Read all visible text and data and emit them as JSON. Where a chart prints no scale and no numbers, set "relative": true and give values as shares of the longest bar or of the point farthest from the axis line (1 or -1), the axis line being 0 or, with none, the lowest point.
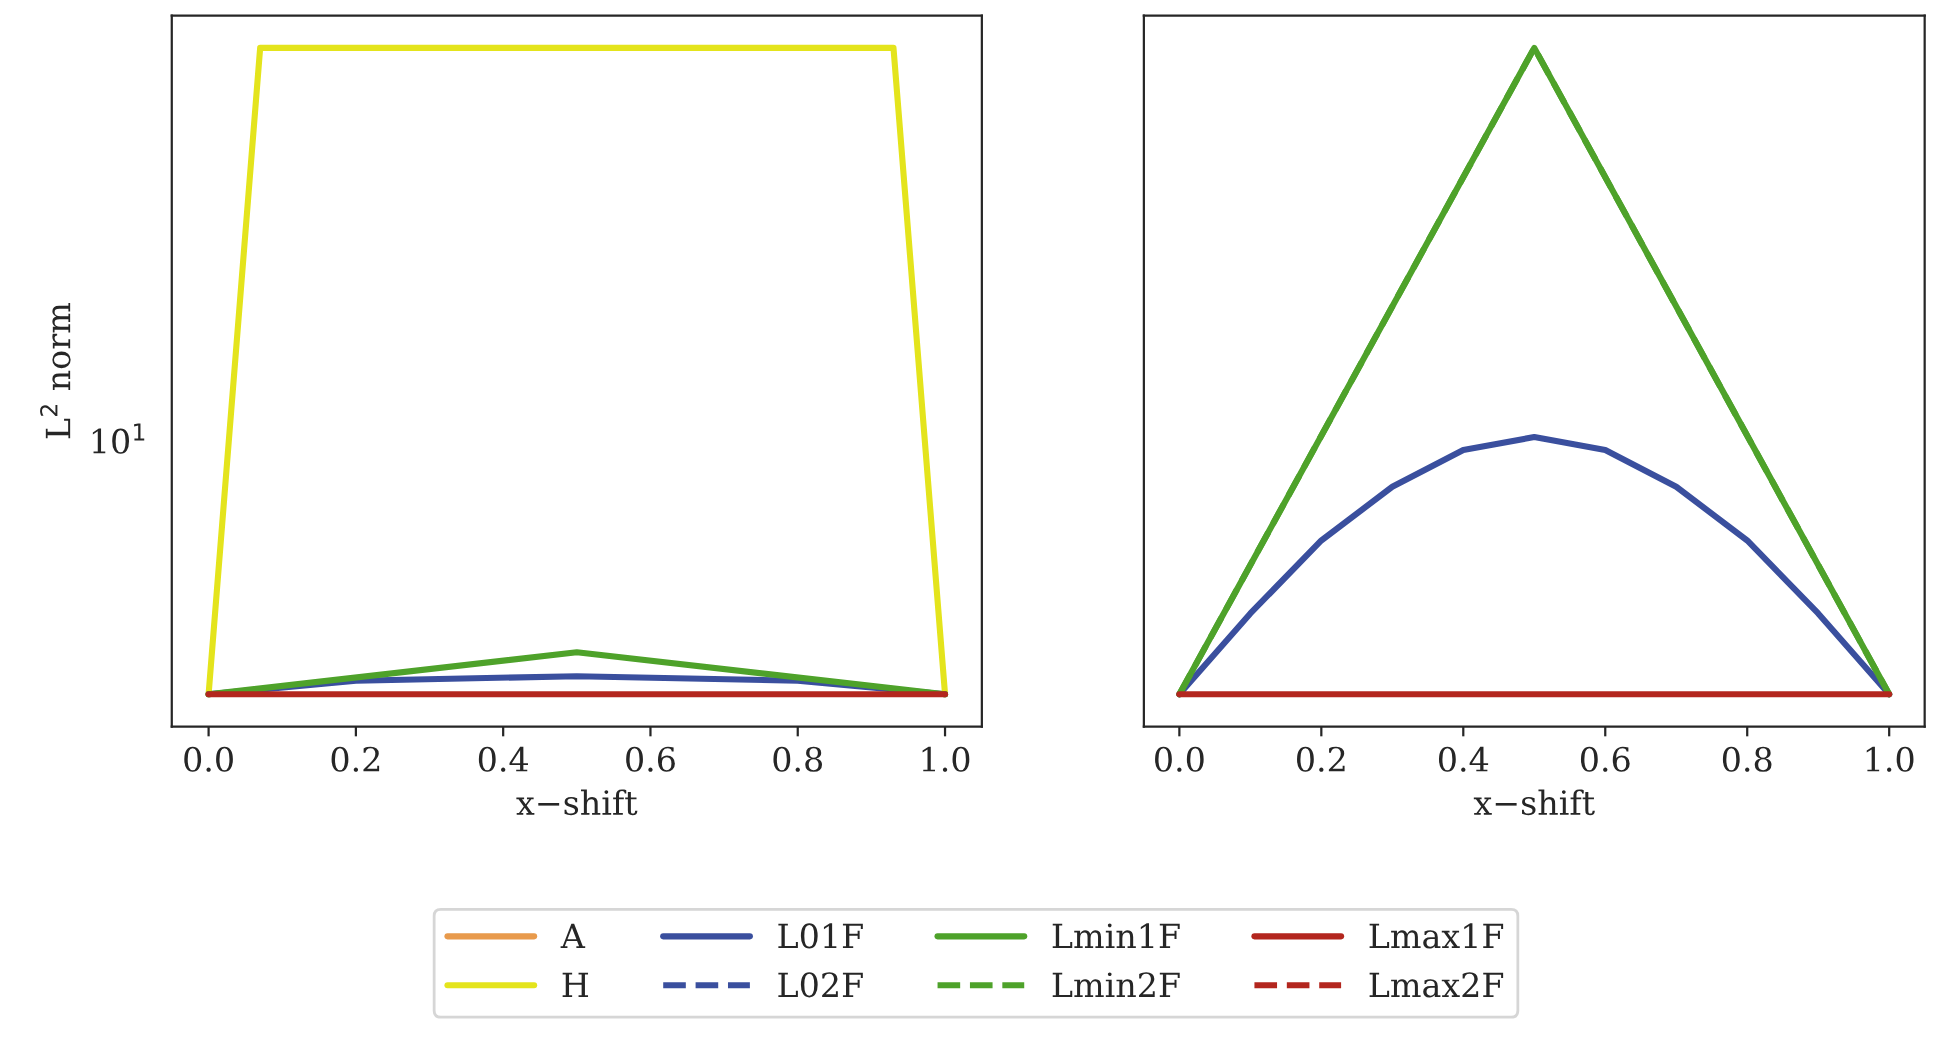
{
  "chart_data": [
    {
      "type": "line",
      "ylabel": "L$^{2}$ norm",
      "xlabel": "x−shift",
      "relative": true,
      "xlim": [
        -0.05,
        1.05
      ],
      "xticks": [
        {
          "value": 0,
          "label": "0.0"
        },
        {
          "value": 0.2,
          "label": "0.2"
        },
        {
          "value": 0.4,
          "label": "0.4"
        },
        {
          "value": 0.6,
          "label": "0.6"
        },
        {
          "value": 0.8,
          "label": "0.8"
        },
        {
          "value": 1,
          "label": "1.0"
        }
      ],
      "annotations": [
        "10$^{1}$"
      ],
      "legend": "bottom",
      "marker": "none",
      "series": [
        {
          "name": "A",
          "color": "#e89a4c",
          "line_style": "solid"
        },
        {
          "name": "H",
          "color": "#e4e41c",
          "line_style": "solid",
          "x": [
            0,
            0.07,
            0.93,
            1
          ],
          "values": [
            0,
            1,
            1,
            0
          ]
        },
        {
          "name": "L01F",
          "color": "#3a4f9e",
          "line_style": "solid",
          "x": [
            0,
            0.2,
            0.5,
            0.8,
            1
          ],
          "values": [
            0,
            0.021,
            0.028,
            0.021,
            0
          ]
        },
        {
          "name": "L02F",
          "color": "#3a4f9e",
          "line_style": "dashed"
        },
        {
          "name": "Lmin1F",
          "color": "#4ea22a",
          "line_style": "solid",
          "x": [
            0,
            0.5,
            1
          ],
          "values": [
            0,
            0.065,
            0
          ]
        },
        {
          "name": "Lmin2F",
          "color": "#4ea22a",
          "line_style": "dashed"
        },
        {
          "name": "Lmax1F",
          "color": "#b3261e",
          "line_style": "solid",
          "x": [
            0,
            1
          ],
          "values": [
            0,
            0
          ]
        },
        {
          "name": "Lmax2F",
          "color": "#b3261e",
          "line_style": "dashed"
        }
      ]
    },
    {
      "type": "line",
      "xlabel": "x−shift",
      "relative": true,
      "xlim": [
        -0.05,
        1.05
      ],
      "xticks": [
        {
          "value": 0,
          "label": "0.0"
        },
        {
          "value": 0.2,
          "label": "0.2"
        },
        {
          "value": 0.4,
          "label": "0.4"
        },
        {
          "value": 0.6,
          "label": "0.6"
        },
        {
          "value": 0.8,
          "label": "0.8"
        },
        {
          "value": 1,
          "label": "1.0"
        }
      ],
      "marker": "none",
      "series": [
        {
          "color": "#3a4f9e",
          "line_style": "solid",
          "x": [
            0,
            0.1,
            0.2,
            0.3,
            0.4,
            0.5,
            0.6,
            0.7,
            0.8,
            0.9,
            1
          ],
          "values": [
            0,
            0.125,
            0.238,
            0.321,
            0.378,
            0.398,
            0.378,
            0.321,
            0.238,
            0.125,
            0
          ]
        },
        {
          "color": "#4ea22a",
          "line_style": "solid",
          "x": [
            0,
            0.5,
            1
          ],
          "values": [
            0,
            1,
            0
          ]
        },
        {
          "color": "#4ea22a",
          "line_style": "dashed",
          "x": [
            0,
            0.5,
            1
          ],
          "values": [
            0,
            1,
            0
          ]
        },
        {
          "color": "#b3261e",
          "line_style": "solid",
          "x": [
            0,
            1
          ],
          "values": [
            0,
            0
          ]
        }
      ]
    }
  ]
}
